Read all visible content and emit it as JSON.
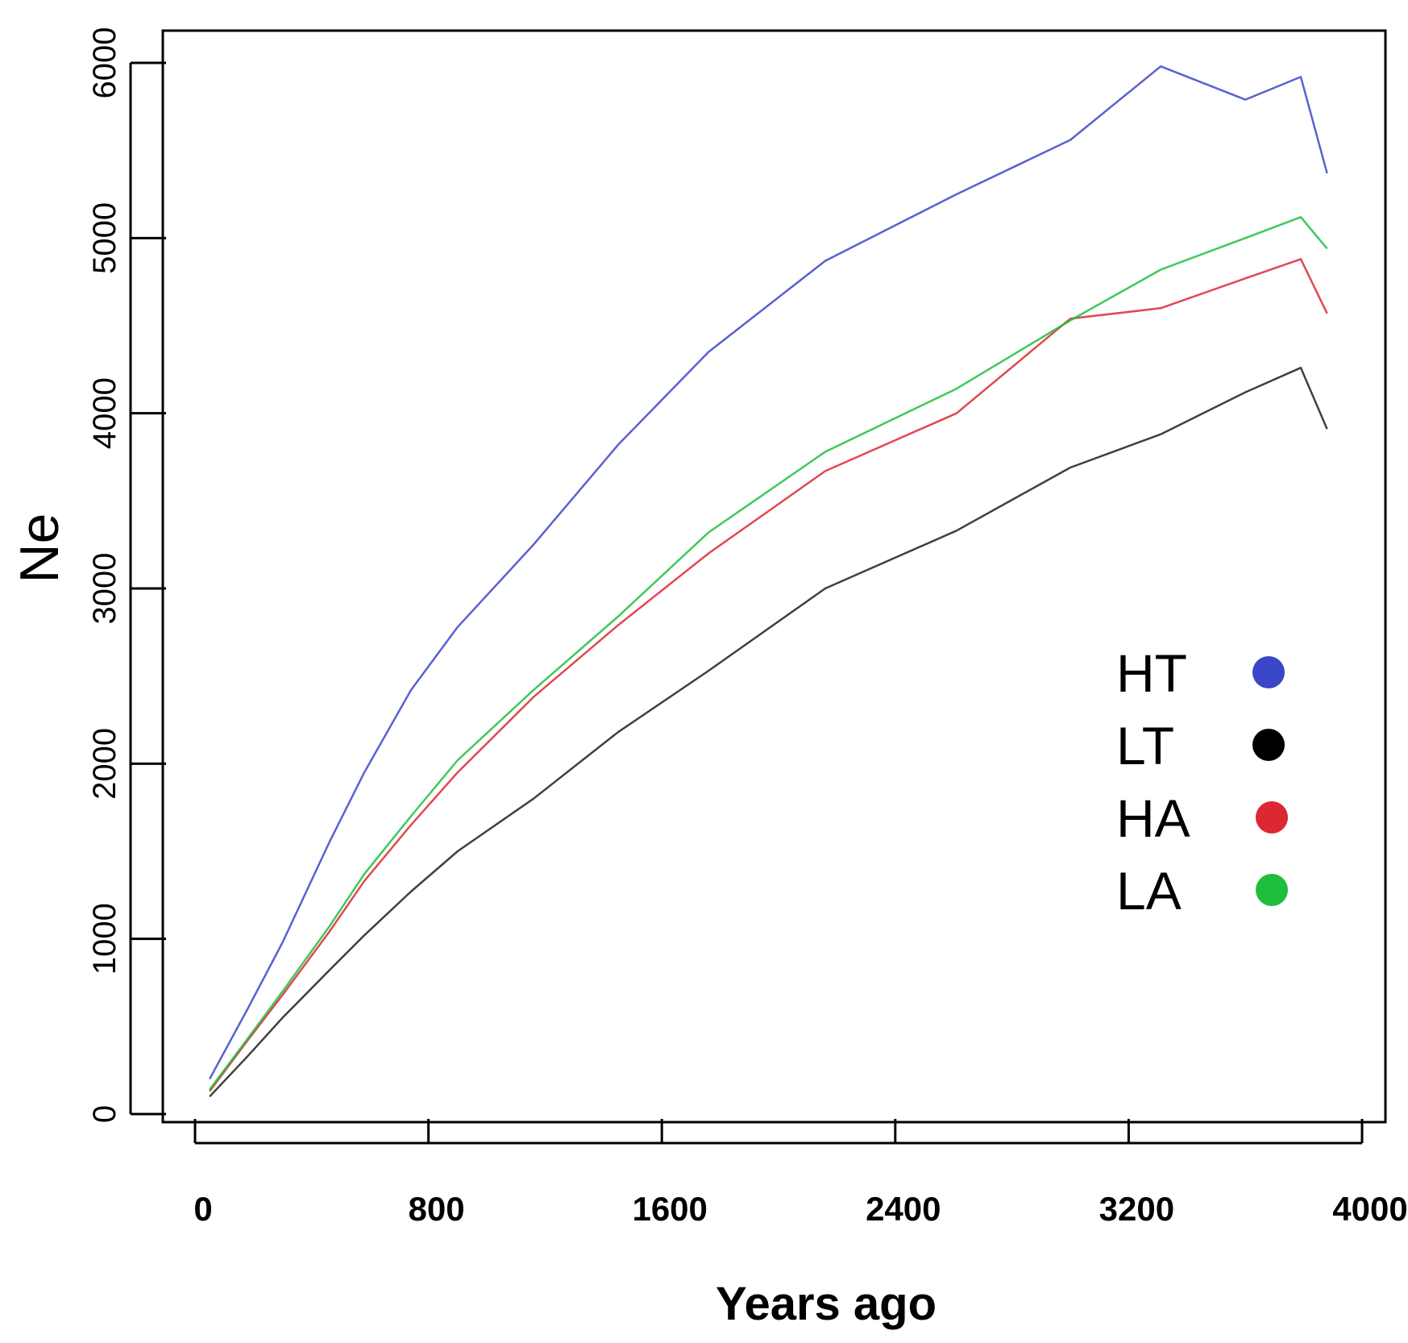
{
  "chart_data": {
    "type": "line",
    "title": "",
    "xlabel": "Years ago",
    "ylabel": "Ne",
    "xlim": [
      -50,
      4050
    ],
    "ylim": [
      -50,
      6200
    ],
    "xticks": [
      0,
      800,
      1600,
      2400,
      3200,
      4000
    ],
    "xtick_labels": [
      "0",
      "800",
      "1600",
      "2400",
      "3200",
      "4000"
    ],
    "yticks": [
      0,
      1000,
      2000,
      3000,
      4000,
      5000,
      6000
    ],
    "ytick_labels": [
      "0",
      "1000",
      "2000",
      "3000",
      "4000",
      "5000",
      "6000"
    ],
    "grid": false,
    "legend_position": "center-right",
    "x": [
      50,
      180,
      300,
      460,
      580,
      740,
      900,
      1160,
      1450,
      1760,
      2160,
      2610,
      3000,
      3310,
      3600,
      3790,
      3880
    ],
    "series": [
      {
        "name": "HT",
        "color": "#3c46c8",
        "values": [
          200,
          600,
          980,
          1550,
          1950,
          2420,
          2780,
          3250,
          3820,
          4350,
          4870,
          5250,
          5560,
          5980,
          5790,
          5920,
          5370
        ]
      },
      {
        "name": "LT",
        "color": "#000000",
        "values": [
          100,
          330,
          550,
          820,
          1020,
          1270,
          1500,
          1800,
          2180,
          2530,
          3000,
          3330,
          3690,
          3880,
          4120,
          4260,
          3910
        ]
      },
      {
        "name": "HA",
        "color": "#dc2832",
        "values": [
          130,
          420,
          680,
          1040,
          1330,
          1650,
          1950,
          2380,
          2790,
          3200,
          3670,
          4000,
          4540,
          4600,
          4770,
          4880,
          4570
        ]
      },
      {
        "name": "LA",
        "color": "#1ebe3c",
        "values": [
          140,
          430,
          700,
          1070,
          1370,
          1700,
          2020,
          2420,
          2840,
          3320,
          3780,
          4140,
          4530,
          4820,
          5000,
          5120,
          4940
        ]
      }
    ]
  }
}
